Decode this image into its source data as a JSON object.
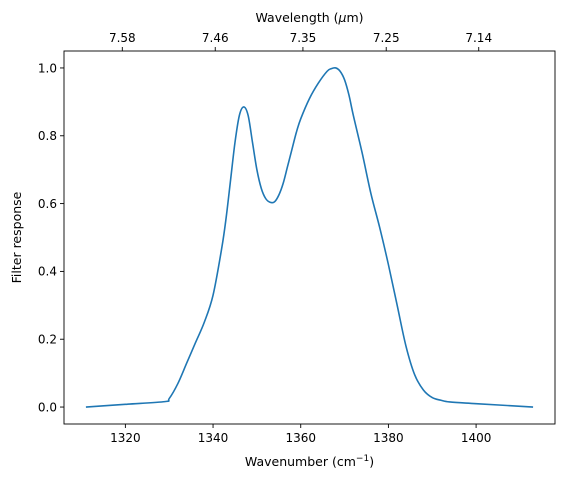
{
  "chart_data": {
    "type": "line",
    "xlabel": "Wavenumber (cm",
    "xlabel_sup": "−1",
    "xlabel_end": ")",
    "ylabel": "Filter response",
    "top_axis_label_prefix": "Wavelength (",
    "top_axis_label_mu": "μ",
    "top_axis_label_suffix": "m)",
    "xlim": [
      1306,
      1418
    ],
    "ylim": [
      -0.05,
      1.05
    ],
    "x_ticks": [
      {
        "value": 1320,
        "label": "1320"
      },
      {
        "value": 1340,
        "label": "1340"
      },
      {
        "value": 1360,
        "label": "1360"
      },
      {
        "value": 1380,
        "label": "1380"
      },
      {
        "value": 1400,
        "label": "1400"
      }
    ],
    "y_ticks": [
      {
        "value": 0.0,
        "label": "0.0"
      },
      {
        "value": 0.2,
        "label": "0.2"
      },
      {
        "value": 0.4,
        "label": "0.4"
      },
      {
        "value": 0.6,
        "label": "0.6"
      },
      {
        "value": 0.8,
        "label": "0.8"
      },
      {
        "value": 1.0,
        "label": "1.0"
      }
    ],
    "top_ticks": [
      {
        "wavenumber": 1319.3,
        "label": "7.58"
      },
      {
        "wavenumber": 1340.5,
        "label": "7.46"
      },
      {
        "wavenumber": 1360.5,
        "label": "7.35"
      },
      {
        "wavenumber": 1379.5,
        "label": "7.25"
      },
      {
        "wavenumber": 1400.6,
        "label": "7.14"
      }
    ],
    "color": "#1f77b4",
    "grid": false,
    "series": [
      {
        "x": [
          1311,
          1320,
          1329,
          1330,
          1332,
          1334,
          1336,
          1338,
          1340,
          1342,
          1343,
          1344,
          1345,
          1346,
          1347,
          1348,
          1349,
          1350,
          1351,
          1352,
          1353,
          1354,
          1355,
          1356,
          1357,
          1358,
          1359,
          1360,
          1362,
          1364,
          1366,
          1367,
          1368,
          1369,
          1370,
          1371,
          1372,
          1374,
          1376,
          1378,
          1380,
          1382,
          1384,
          1386,
          1388,
          1390,
          1392,
          1394,
          1400,
          1413
        ],
        "y": [
          0.0,
          0.008,
          0.016,
          0.025,
          0.07,
          0.13,
          0.19,
          0.25,
          0.33,
          0.47,
          0.56,
          0.67,
          0.78,
          0.86,
          0.885,
          0.86,
          0.78,
          0.7,
          0.645,
          0.615,
          0.604,
          0.605,
          0.625,
          0.66,
          0.71,
          0.76,
          0.81,
          0.85,
          0.91,
          0.955,
          0.99,
          0.998,
          1.0,
          0.99,
          0.965,
          0.92,
          0.86,
          0.75,
          0.63,
          0.53,
          0.42,
          0.3,
          0.18,
          0.095,
          0.05,
          0.028,
          0.02,
          0.015,
          0.01,
          0.0
        ]
      }
    ]
  }
}
